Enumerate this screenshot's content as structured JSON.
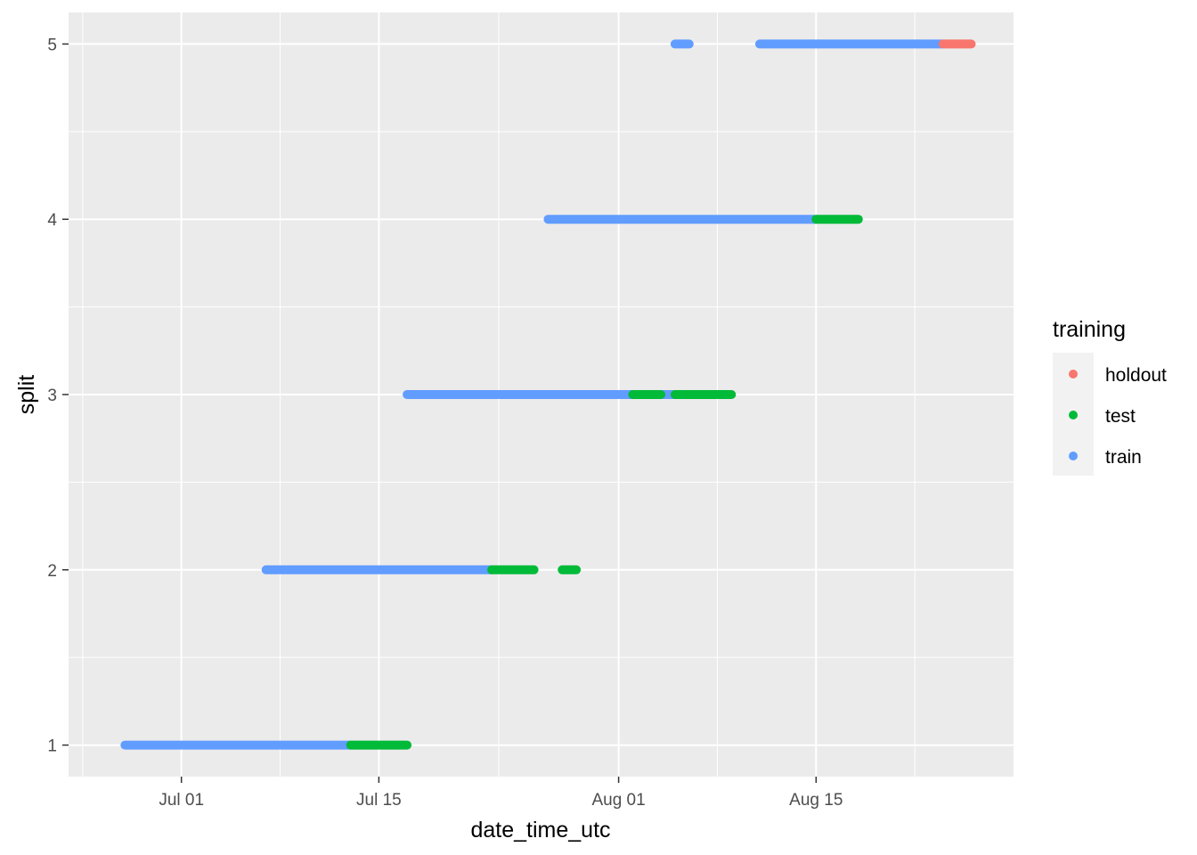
{
  "chart_data": {
    "type": "scatter",
    "xlabel": "date_time_utc",
    "ylabel": "split",
    "x_ticks": [
      {
        "date": "2023-07-01",
        "label": "Jul 01"
      },
      {
        "date": "2023-07-15",
        "label": "Jul 15"
      },
      {
        "date": "2023-08-01",
        "label": "Aug 01"
      },
      {
        "date": "2023-08-15",
        "label": "Aug 15"
      }
    ],
    "y_ticks": [
      1,
      2,
      3,
      4,
      5
    ],
    "xlim": [
      "2023-06-23",
      "2023-08-29"
    ],
    "ylim": [
      0.82,
      5.18
    ],
    "grid": true,
    "legend": {
      "title": "training",
      "position": "right",
      "entries": [
        {
          "label": "holdout",
          "color": "#F8766D"
        },
        {
          "label": "test",
          "color": "#00BA38"
        },
        {
          "label": "train",
          "color": "#619CFF"
        }
      ]
    },
    "series": [
      {
        "name": "train",
        "color": "#619CFF",
        "segments": [
          {
            "y": 1,
            "start": "2023-06-27",
            "end": "2023-07-13"
          },
          {
            "y": 2,
            "start": "2023-07-07",
            "end": "2023-07-23"
          },
          {
            "y": 3,
            "start": "2023-07-17",
            "end": "2023-08-02"
          },
          {
            "y": 3,
            "start": "2023-08-04",
            "end": "2023-08-05"
          },
          {
            "y": 4,
            "start": "2023-07-27",
            "end": "2023-08-15"
          },
          {
            "y": 5,
            "start": "2023-08-05",
            "end": "2023-08-06"
          },
          {
            "y": 5,
            "start": "2023-08-11",
            "end": "2023-08-24"
          }
        ]
      },
      {
        "name": "test",
        "color": "#00BA38",
        "segments": [
          {
            "y": 1,
            "start": "2023-07-13",
            "end": "2023-07-17"
          },
          {
            "y": 2,
            "start": "2023-07-23",
            "end": "2023-07-26"
          },
          {
            "y": 2,
            "start": "2023-07-28",
            "end": "2023-07-29"
          },
          {
            "y": 3,
            "start": "2023-08-02",
            "end": "2023-08-04"
          },
          {
            "y": 3,
            "start": "2023-08-05",
            "end": "2023-08-07"
          },
          {
            "y": 3,
            "start": "2023-08-07",
            "end": "2023-08-09"
          },
          {
            "y": 4,
            "start": "2023-08-15",
            "end": "2023-08-18"
          }
        ]
      },
      {
        "name": "holdout",
        "color": "#F8766D",
        "segments": [
          {
            "y": 5,
            "start": "2023-08-24",
            "end": "2023-08-26"
          }
        ]
      }
    ]
  }
}
